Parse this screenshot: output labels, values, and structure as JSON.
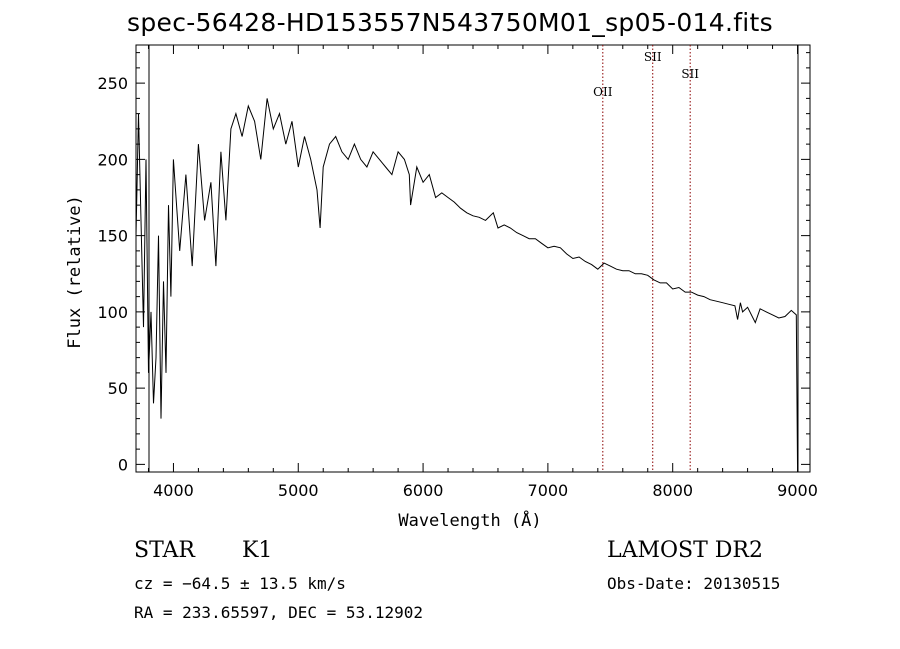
{
  "chart_data": {
    "type": "line",
    "title": "spec-56428-HD153557N543750M01_sp05-014.fits",
    "xlabel": "Wavelength (Å)",
    "ylabel": "Flux (relative)",
    "xlim": [
      3700,
      9100
    ],
    "ylim": [
      -5,
      275
    ],
    "xticks": [
      4000,
      5000,
      6000,
      7000,
      8000,
      9000
    ],
    "yticks": [
      0,
      50,
      100,
      150,
      200,
      250
    ],
    "grid": false,
    "series": [
      {
        "x": [
          3700,
          3720,
          3740,
          3760,
          3780,
          3800,
          3820,
          3840,
          3860,
          3880,
          3900,
          3920,
          3940,
          3960,
          3980,
          4000,
          4050,
          4100,
          4150,
          4200,
          4250,
          4300,
          4340,
          4380,
          4420,
          4460,
          4500,
          4550,
          4600,
          4650,
          4700,
          4750,
          4800,
          4850,
          4900,
          4950,
          5000,
          5050,
          5100,
          5150,
          5175,
          5200,
          5250,
          5300,
          5350,
          5400,
          5450,
          5500,
          5550,
          5600,
          5650,
          5700,
          5750,
          5800,
          5850,
          5890,
          5900,
          5950,
          6000,
          6050,
          6100,
          6150,
          6200,
          6250,
          6300,
          6350,
          6400,
          6450,
          6500,
          6563,
          6600,
          6650,
          6700,
          6750,
          6800,
          6850,
          6900,
          6950,
          7000,
          7050,
          7100,
          7150,
          7200,
          7250,
          7300,
          7350,
          7400,
          7450,
          7500,
          7550,
          7600,
          7650,
          7700,
          7750,
          7800,
          7850,
          7900,
          7950,
          8000,
          8050,
          8100,
          8150,
          8200,
          8250,
          8300,
          8350,
          8400,
          8450,
          8498,
          8520,
          8542,
          8560,
          8600,
          8662,
          8700,
          8750,
          8800,
          8850,
          8900,
          8950,
          8990,
          9000
        ],
        "y": [
          150,
          230,
          160,
          90,
          200,
          60,
          100,
          40,
          70,
          150,
          30,
          120,
          60,
          170,
          110,
          200,
          140,
          190,
          130,
          210,
          160,
          185,
          130,
          205,
          160,
          220,
          230,
          215,
          235,
          225,
          200,
          240,
          220,
          230,
          210,
          225,
          195,
          215,
          200,
          180,
          155,
          195,
          210,
          215,
          205,
          200,
          210,
          200,
          195,
          205,
          200,
          195,
          190,
          205,
          200,
          190,
          170,
          195,
          185,
          190,
          175,
          178,
          175,
          172,
          168,
          165,
          163,
          162,
          160,
          165,
          155,
          157,
          155,
          152,
          150,
          148,
          148,
          145,
          142,
          143,
          142,
          138,
          135,
          136,
          133,
          131,
          128,
          132,
          130,
          128,
          127,
          127,
          125,
          125,
          124,
          121,
          119,
          119,
          115,
          116,
          113,
          113,
          111,
          110,
          108,
          107,
          106,
          105,
          104,
          95,
          106,
          100,
          103,
          93,
          102,
          100,
          98,
          96,
          97,
          101,
          98,
          0
        ],
        "color": "#000000"
      }
    ],
    "lines": [
      {
        "label": "OII",
        "x": 7440
      },
      {
        "label": "SII",
        "x": 7840
      },
      {
        "label": "SII",
        "x": 8140
      }
    ],
    "line_color": "#8b0000"
  },
  "info": {
    "object_type": "STAR",
    "subclass": "K1",
    "survey": "LAMOST DR2",
    "cz": "cz = −64.5 ± 13.5 km/s",
    "obs_date": "Obs-Date: 20130515",
    "coords": "RA = 233.65597, DEC =  53.12902"
  }
}
